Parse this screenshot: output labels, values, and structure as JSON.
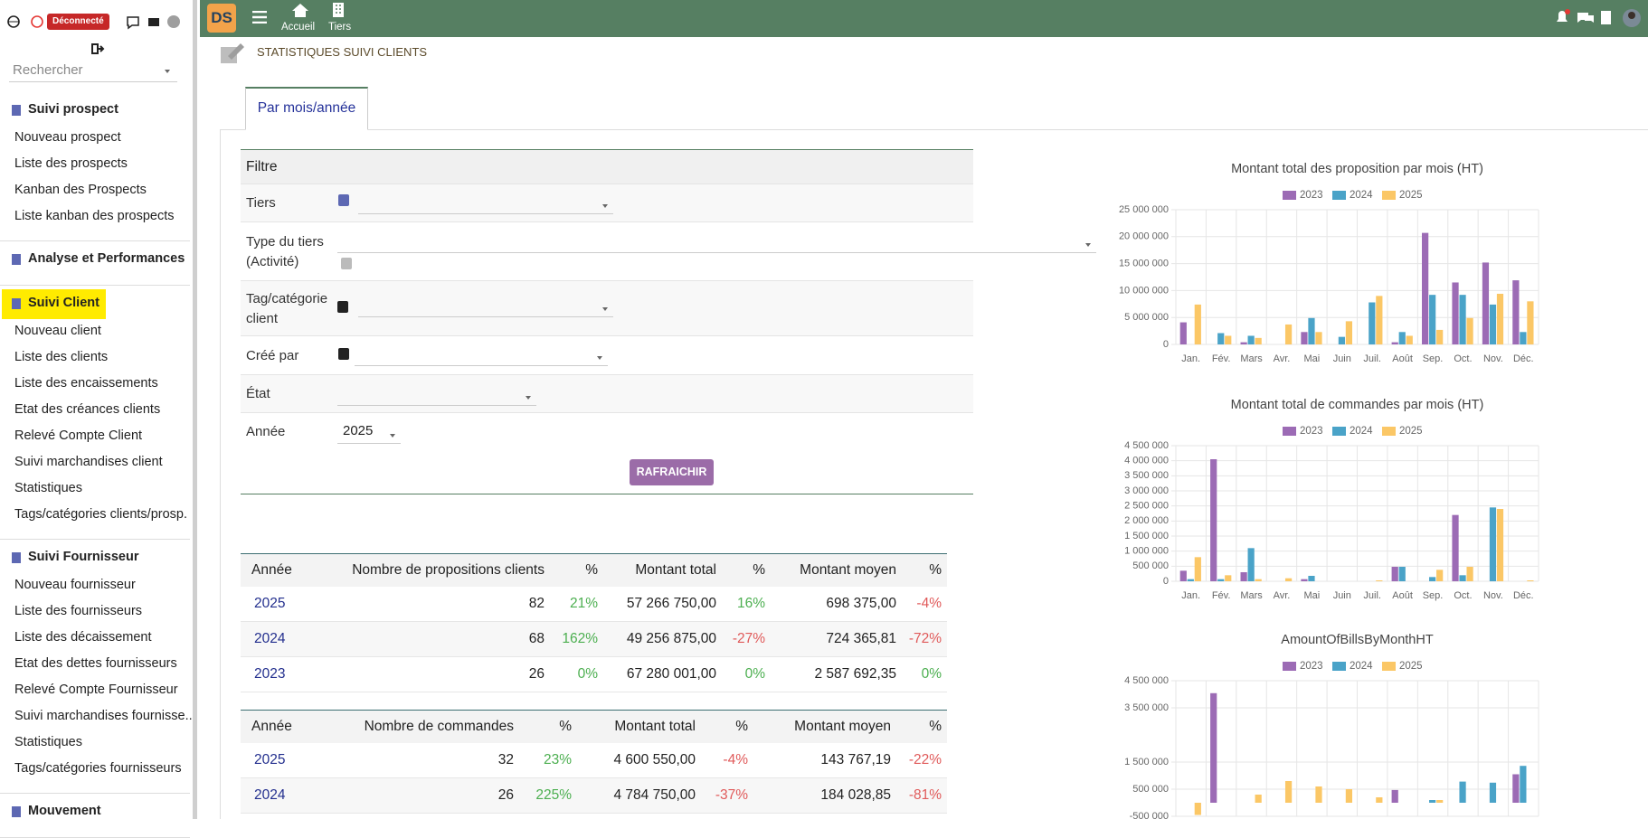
{
  "sidebar": {
    "status": "Déconnecté",
    "search_placeholder": "Rechercher",
    "sections": [
      {
        "title": "Suivi prospect",
        "items": [
          "Nouveau prospect",
          "Liste des prospects",
          "Kanban des Prospects",
          "Liste kanban des prospects"
        ]
      },
      {
        "title": "Analyse et Performances",
        "items": []
      },
      {
        "title": "Suivi Client",
        "active": true,
        "items": [
          "Nouveau client",
          "Liste des clients",
          "Liste des encaissements",
          "Etat des créances clients",
          "Relevé Compte Client",
          "Suivi marchandises client",
          "Statistiques",
          "Tags/catégories clients/prosp."
        ]
      },
      {
        "title": "Suivi Fournisseur",
        "items": [
          "Nouveau fournisseur",
          "Liste des fournisseurs",
          "Liste des décaissement",
          "Etat des dettes fournisseurs",
          "Relevé Compte Fournisseur",
          "Suivi marchandises fournisse...",
          "Statistiques",
          "Tags/catégories fournisseurs"
        ]
      },
      {
        "title": "Mouvement",
        "items": []
      }
    ]
  },
  "topbar": {
    "nav": [
      "Accueil",
      "Tiers"
    ]
  },
  "page": {
    "title": "STATISTIQUES SUIVI CLIENTS",
    "tab": "Par mois/année"
  },
  "filter": {
    "title": "Filtre",
    "fields": [
      {
        "label": "Tiers"
      },
      {
        "label": "Type du tiers (Activité)"
      },
      {
        "label": "Tag/catégorie client"
      },
      {
        "label": "Créé par"
      },
      {
        "label": "État"
      },
      {
        "label": "Année",
        "value": "2025"
      }
    ],
    "button": "RAFRAICHIR"
  },
  "tables": [
    {
      "columns": [
        "Année",
        "Nombre de propositions clients",
        "%",
        "Montant total",
        "%",
        "Montant moyen",
        "%"
      ],
      "rows": [
        [
          "2025",
          "82",
          "21%",
          "57 266 750,00",
          "16%",
          "698 375,00",
          "-4%"
        ],
        [
          "2024",
          "68",
          "162%",
          "49 256 875,00",
          "-27%",
          "724 365,81",
          "-72%"
        ],
        [
          "2023",
          "26",
          "0%",
          "67 280 001,00",
          "0%",
          "2 587 692,35",
          "0%"
        ]
      ]
    },
    {
      "columns": [
        "Année",
        "Nombre de commandes",
        "%",
        "Montant total",
        "%",
        "Montant moyen",
        "%"
      ],
      "rows": [
        [
          "2025",
          "32",
          "23%",
          "4 600 550,00",
          "-4%",
          "143 767,19",
          "-22%"
        ],
        [
          "2024",
          "26",
          "225%",
          "4 784 750,00",
          "-37%",
          "184 028,85",
          "-81%"
        ]
      ]
    }
  ],
  "chart_data": [
    {
      "type": "bar",
      "title": "Montant total des proposition par mois (HT)",
      "categories": [
        "Jan.",
        "Fév.",
        "Mars",
        "Avr.",
        "Mai",
        "Juin",
        "Juil.",
        "Août",
        "Sep.",
        "Oct.",
        "Nov.",
        "Déc."
      ],
      "series": [
        {
          "name": "2023",
          "color": "#9c6bb5",
          "values": [
            4100000,
            0,
            400000,
            0,
            2300000,
            0,
            0,
            400000,
            20700000,
            11500000,
            15200000,
            11900000
          ]
        },
        {
          "name": "2024",
          "color": "#4aa3c8",
          "values": [
            0,
            2100000,
            1600000,
            0,
            4900000,
            1400000,
            7800000,
            2300000,
            9200000,
            9200000,
            7400000,
            2300000
          ]
        },
        {
          "name": "2025",
          "color": "#fbc766",
          "values": [
            7400000,
            1600000,
            1200000,
            3700000,
            2300000,
            4300000,
            9000000,
            1600000,
            2700000,
            4900000,
            9400000,
            8000000
          ]
        }
      ],
      "ylim": [
        0,
        25000000
      ],
      "yticks": [
        0,
        {
          "value": 5000000,
          "label": "5 000 000"
        },
        {
          "value": 10000000,
          "label": "10 000 000"
        },
        {
          "value": 15000000,
          "label": "15 000 000"
        },
        {
          "value": 20000000,
          "label": "20 000 000"
        },
        {
          "value": 25000000,
          "label": "25 000 000"
        }
      ],
      "grid": true
    },
    {
      "type": "bar",
      "title": "Montant total de commandes par mois (HT)",
      "categories": [
        "Jan.",
        "Fév.",
        "Mars",
        "Avr.",
        "Mai",
        "Juin",
        "Juil.",
        "Août",
        "Sep.",
        "Oct.",
        "Nov.",
        "Déc."
      ],
      "series": [
        {
          "name": "2023",
          "color": "#9c6bb5",
          "values": [
            350000,
            4050000,
            300000,
            0,
            70000,
            0,
            0,
            480000,
            0,
            2200000,
            0,
            0
          ]
        },
        {
          "name": "2024",
          "color": "#4aa3c8",
          "values": [
            70000,
            70000,
            1100000,
            0,
            180000,
            0,
            0,
            480000,
            140000,
            200000,
            2450000,
            0
          ]
        },
        {
          "name": "2025",
          "color": "#fbc766",
          "values": [
            800000,
            200000,
            70000,
            100000,
            0,
            0,
            30000,
            0,
            380000,
            480000,
            2400000,
            30000
          ]
        }
      ],
      "ylim": [
        0,
        4500000
      ],
      "yticks": [
        0,
        {
          "value": 500000,
          "label": "500 000"
        },
        {
          "value": 1000000,
          "label": "1 000 000"
        },
        {
          "value": 1500000,
          "label": "1 500 000"
        },
        {
          "value": 2000000,
          "label": "2 000 000"
        },
        {
          "value": 2500000,
          "label": "2 500 000"
        },
        {
          "value": 3000000,
          "label": "3 000 000"
        },
        {
          "value": 3500000,
          "label": "3 500 000"
        },
        {
          "value": 4000000,
          "label": "4 000 000"
        },
        {
          "value": 4500000,
          "label": "4 500 000"
        }
      ],
      "grid": true
    },
    {
      "type": "bar",
      "title": "AmountOfBillsByMonthHT",
      "series": [
        {
          "name": "2023",
          "color": "#9c6bb5",
          "values": [
            0,
            4040000,
            0,
            0,
            0,
            0,
            0,
            470000,
            0,
            0,
            0,
            1050000
          ]
        },
        {
          "name": "2024",
          "color": "#4aa3c8",
          "values": [
            0,
            0,
            0,
            0,
            0,
            0,
            0,
            0,
            100000,
            780000,
            740000,
            1360000
          ]
        },
        {
          "name": "2025",
          "color": "#fbc766",
          "values": [
            -450000,
            0,
            300000,
            800000,
            600000,
            500000,
            200000,
            0,
            100000,
            0,
            0,
            0
          ]
        }
      ],
      "ylim": [
        -500000,
        4500000
      ],
      "yticks": [
        {
          "value": -500000,
          "label": "-500 000"
        },
        {
          "value": 500000,
          "label": "500 000"
        },
        {
          "value": 1500000,
          "label": "1 500 000"
        },
        {
          "value": 3500000,
          "label": "3 500 000"
        },
        {
          "value": 4500000,
          "label": "4 500 000"
        }
      ],
      "grid": true
    }
  ]
}
